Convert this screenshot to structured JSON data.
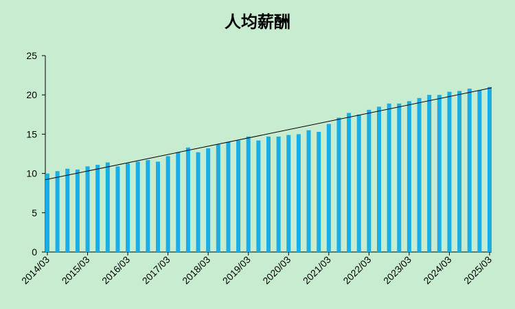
{
  "chart_data": {
    "type": "bar",
    "title": "人均薪酬",
    "categories": [
      "2014/03",
      null,
      null,
      null,
      "2015/03",
      null,
      null,
      null,
      "2016/03",
      null,
      null,
      null,
      "2017/03",
      null,
      null,
      null,
      "2018/03",
      null,
      null,
      null,
      "2019/03",
      null,
      null,
      null,
      "2020/03",
      null,
      null,
      null,
      "2021/03",
      null,
      null,
      null,
      "2022/03",
      null,
      null,
      null,
      "2023/03",
      null,
      null,
      null,
      "2024/03",
      null,
      null,
      null,
      "2025/03"
    ],
    "values": [
      10.0,
      10.3,
      10.6,
      10.5,
      10.9,
      11.1,
      11.4,
      10.9,
      11.3,
      11.5,
      11.7,
      11.5,
      12.2,
      12.7,
      13.3,
      12.7,
      13.2,
      13.7,
      14.0,
      14.2,
      14.7,
      14.2,
      14.7,
      14.7,
      14.9,
      15.0,
      15.5,
      15.3,
      16.3,
      17.1,
      17.7,
      17.5,
      18.1,
      18.5,
      18.9,
      18.9,
      19.2,
      19.6,
      20.0,
      20.0,
      20.4,
      20.5,
      20.8,
      20.6,
      21.0
    ],
    "color": "#1aaee6",
    "trendline": {
      "values": [
        9.2,
        20.9
      ],
      "color": "#000000"
    },
    "ylim": [
      0,
      25
    ],
    "yticks": [
      0,
      5,
      10,
      15,
      20,
      25
    ]
  }
}
